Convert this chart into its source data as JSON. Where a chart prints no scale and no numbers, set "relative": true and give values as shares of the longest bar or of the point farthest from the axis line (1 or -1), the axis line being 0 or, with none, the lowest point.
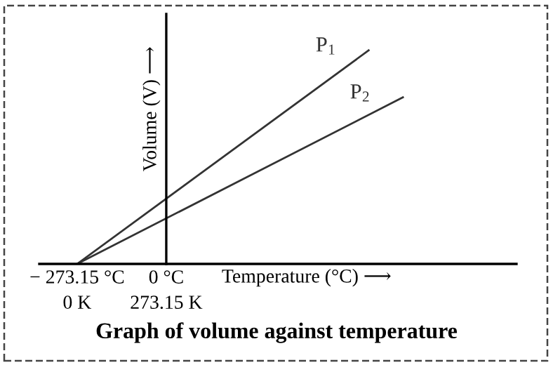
{
  "chart_data": {
    "type": "line",
    "title": "Graph of volume against temperature",
    "xlabel": "Temperature (°C) ⟶",
    "ylabel": "Volume (V) ⟶",
    "relative": true,
    "xlim": [
      -389,
      1073
    ],
    "xticks": [
      {
        "value": -273.15,
        "label": "− 273.15 °C"
      },
      {
        "value": 0,
        "label": "0 °C"
      }
    ],
    "tick_labels": "x",
    "annotations": [
      "0 K",
      "273.15 K"
    ],
    "series": [
      {
        "name": "P$_{1}$",
        "color": "#333333",
        "x": [
          -273.15,
          620
        ],
        "values": [
          0,
          1
        ]
      },
      {
        "name": "P$_{2}$",
        "color": "#333333",
        "x": [
          -273.15,
          725
        ],
        "values": [
          0,
          0.78
        ]
      }
    ]
  }
}
